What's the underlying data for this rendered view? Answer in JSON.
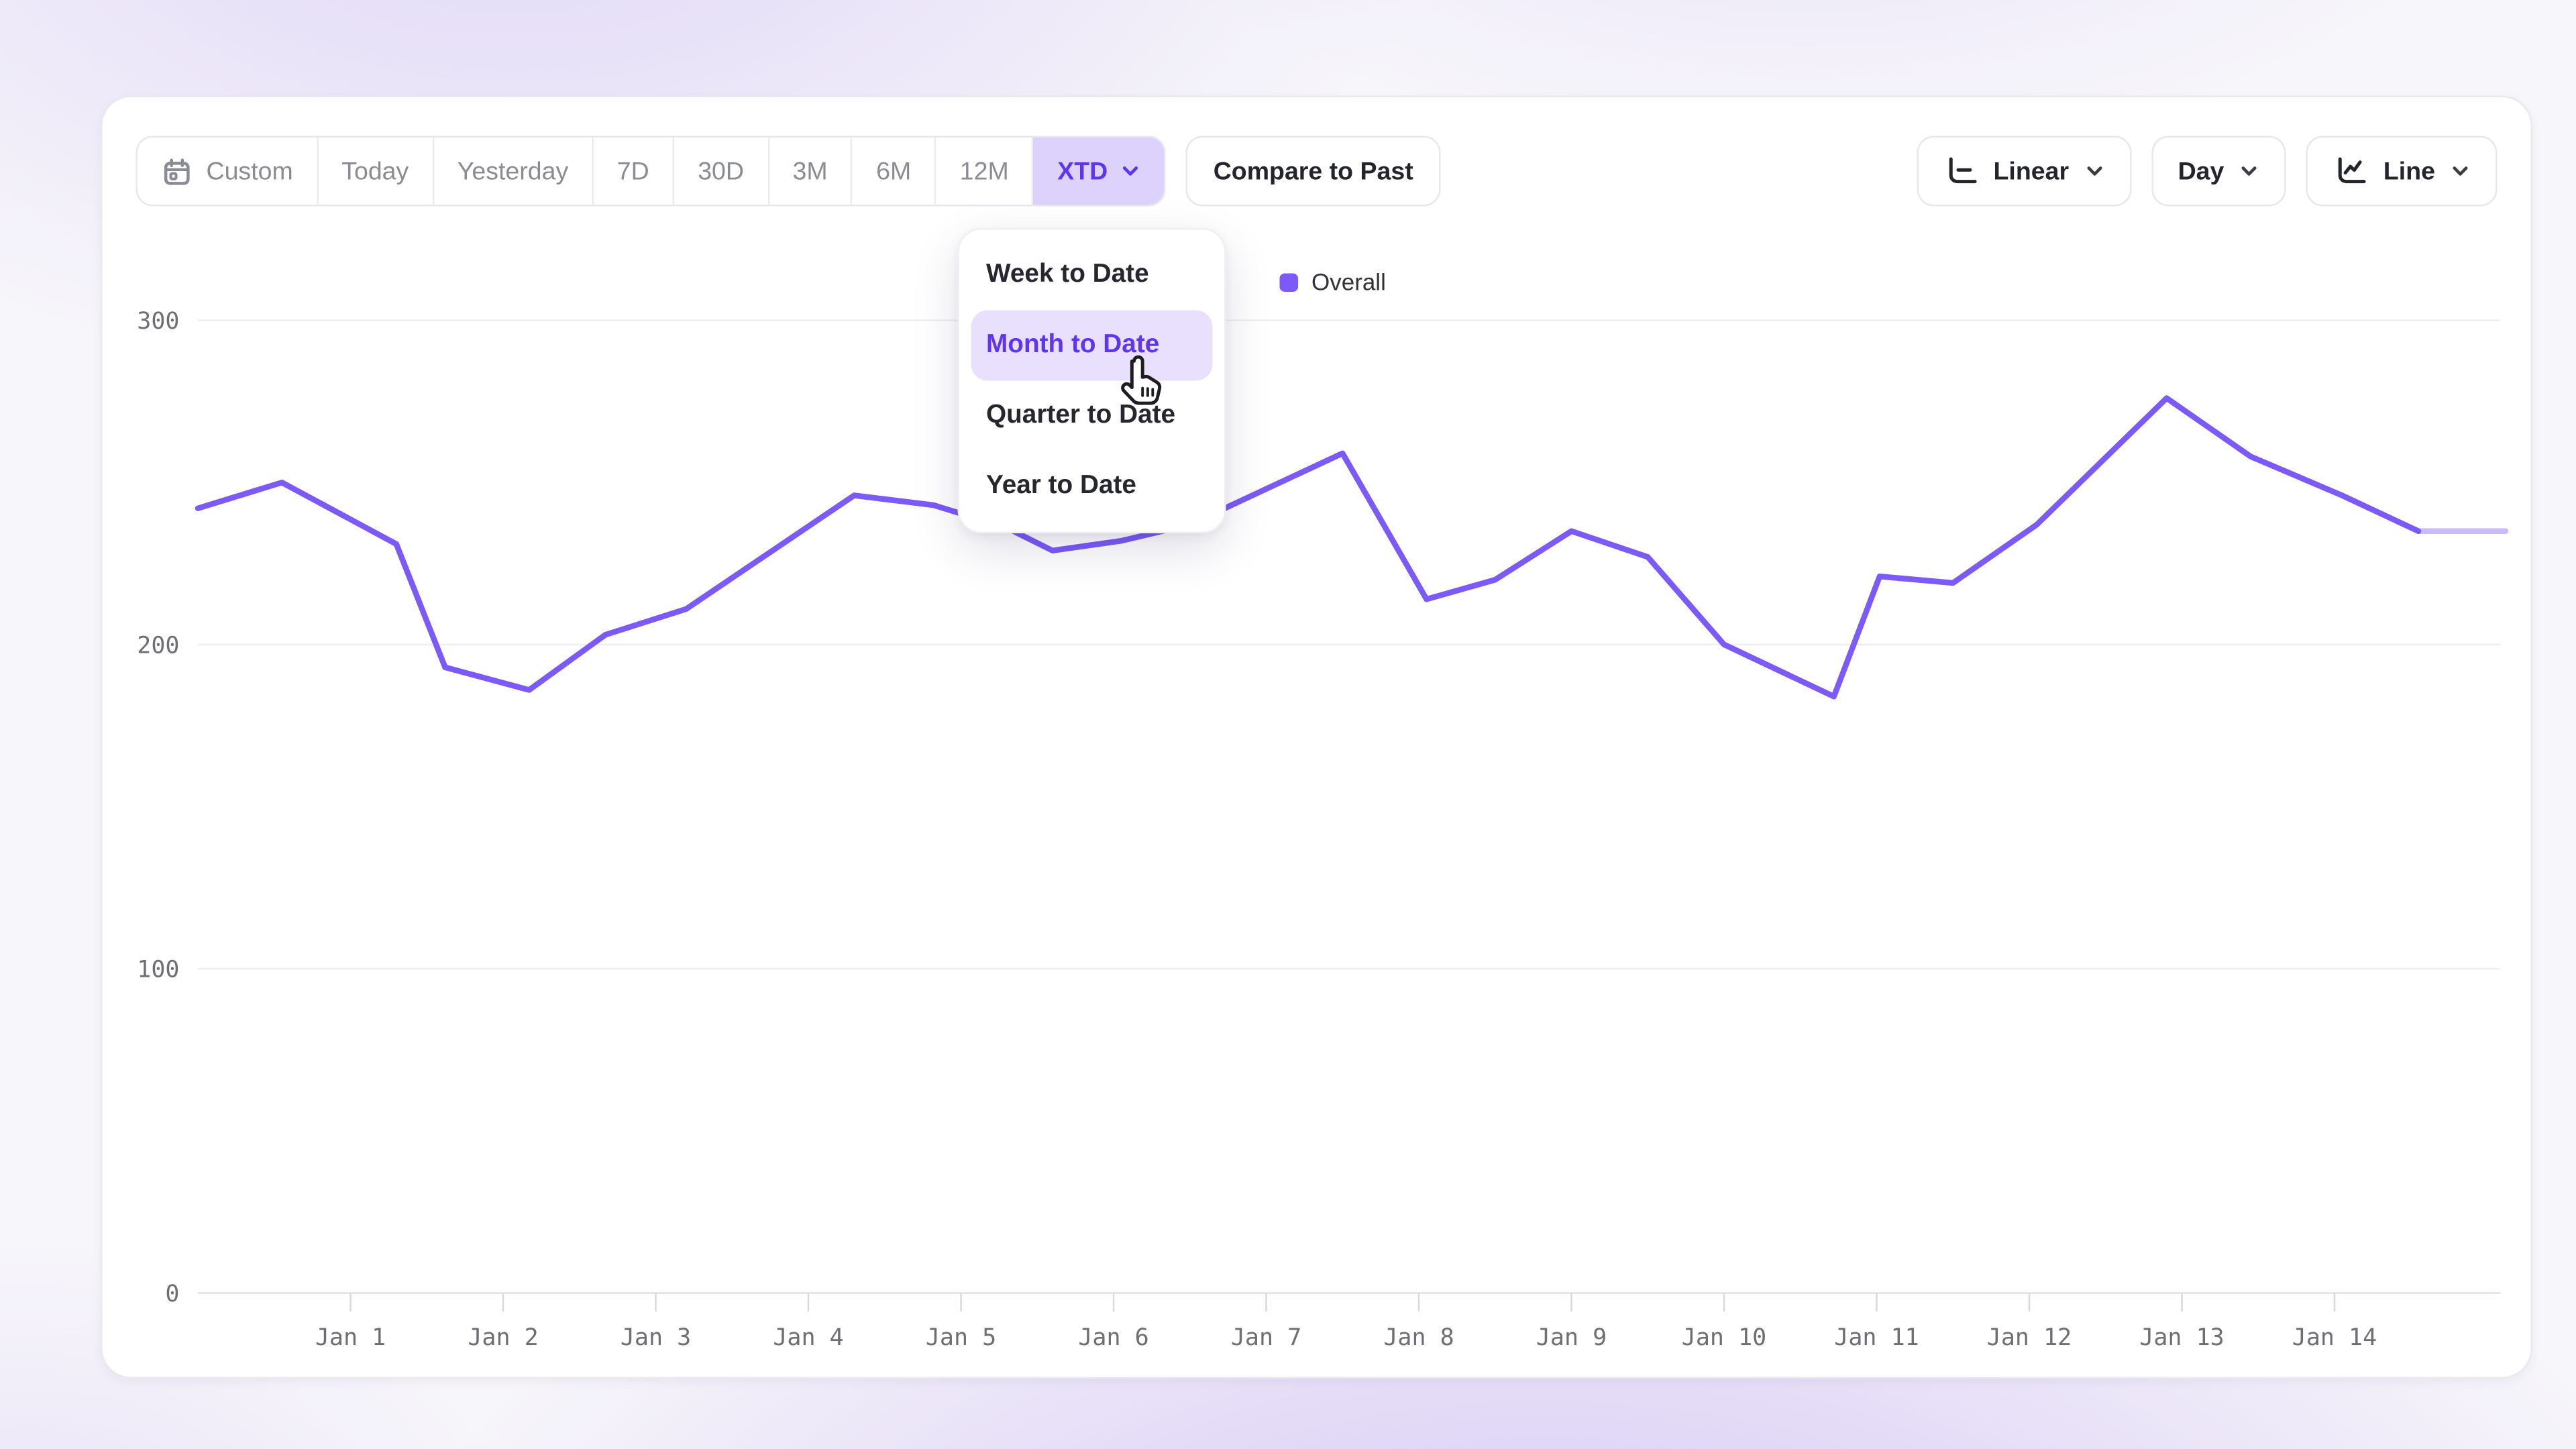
{
  "toolbar": {
    "ranges": [
      {
        "label": "Custom",
        "icon": "calendar-icon"
      },
      {
        "label": "Today"
      },
      {
        "label": "Yesterday"
      },
      {
        "label": "7D"
      },
      {
        "label": "30D"
      },
      {
        "label": "3M"
      },
      {
        "label": "6M"
      },
      {
        "label": "12M"
      }
    ],
    "selected_range": {
      "label": "XTD"
    },
    "compare_label": "Compare to Past",
    "scale_button": {
      "label": "Linear"
    },
    "granularity_button": {
      "label": "Day"
    },
    "chart_type_button": {
      "label": "Line"
    }
  },
  "dropdown": {
    "items": [
      {
        "label": "Week to Date",
        "active": false
      },
      {
        "label": "Month to Date",
        "active": true
      },
      {
        "label": "Quarter to Date",
        "active": false
      },
      {
        "label": "Year to Date",
        "active": false
      }
    ]
  },
  "legend": {
    "label": "Overall",
    "color": "#7b5af7"
  },
  "colors": {
    "accent": "#5f35f0",
    "accent_soft": "#dcd2fb",
    "menu_highlight": "#e8e0fc",
    "series_line": "#7b5af7",
    "axis_label": "#6e6e75"
  },
  "chart_data": {
    "type": "line",
    "title": "",
    "xlabel": "",
    "ylabel": "",
    "grid": "horizontal",
    "legend_position": "top-center",
    "ylim": [
      0,
      300
    ],
    "xlim_days": [
      0,
      15.12
    ],
    "y_ticks": [
      0,
      100,
      200,
      300
    ],
    "x_ticks": [
      {
        "day": 1,
        "label": "Jan 1"
      },
      {
        "day": 2,
        "label": "Jan 2"
      },
      {
        "day": 3,
        "label": "Jan 3"
      },
      {
        "day": 4,
        "label": "Jan 4"
      },
      {
        "day": 5,
        "label": "Jan 5"
      },
      {
        "day": 6,
        "label": "Jan 6"
      },
      {
        "day": 7,
        "label": "Jan 7"
      },
      {
        "day": 8,
        "label": "Jan 8"
      },
      {
        "day": 9,
        "label": "Jan 9"
      },
      {
        "day": 10,
        "label": "Jan 10"
      },
      {
        "day": 11,
        "label": "Jan 11"
      },
      {
        "day": 12,
        "label": "Jan 12"
      },
      {
        "day": 13,
        "label": "Jan 13"
      },
      {
        "day": 14,
        "label": "Jan 14"
      }
    ],
    "series": [
      {
        "name": "Overall",
        "color": "#7b5af7",
        "points": [
          [
            0.0,
            242
          ],
          [
            0.55,
            250
          ],
          [
            1.3,
            231
          ],
          [
            1.62,
            193
          ],
          [
            2.17,
            186
          ],
          [
            2.67,
            203
          ],
          [
            3.2,
            211
          ],
          [
            4.3,
            246
          ],
          [
            4.82,
            243
          ],
          [
            5.3,
            236
          ],
          [
            5.6,
            229
          ],
          [
            6.05,
            232
          ],
          [
            6.5,
            237
          ],
          [
            7.5,
            259
          ],
          [
            8.05,
            214
          ],
          [
            8.5,
            220
          ],
          [
            9.0,
            235
          ],
          [
            9.5,
            227
          ],
          [
            10.0,
            200
          ],
          [
            10.72,
            184
          ],
          [
            11.02,
            221
          ],
          [
            11.5,
            219
          ],
          [
            12.05,
            237
          ],
          [
            12.9,
            276
          ],
          [
            13.45,
            258
          ],
          [
            14.05,
            246
          ],
          [
            14.55,
            235
          ]
        ],
        "incomplete_tail_points": [
          [
            14.55,
            235
          ],
          [
            15.12,
            235
          ]
        ]
      }
    ]
  }
}
